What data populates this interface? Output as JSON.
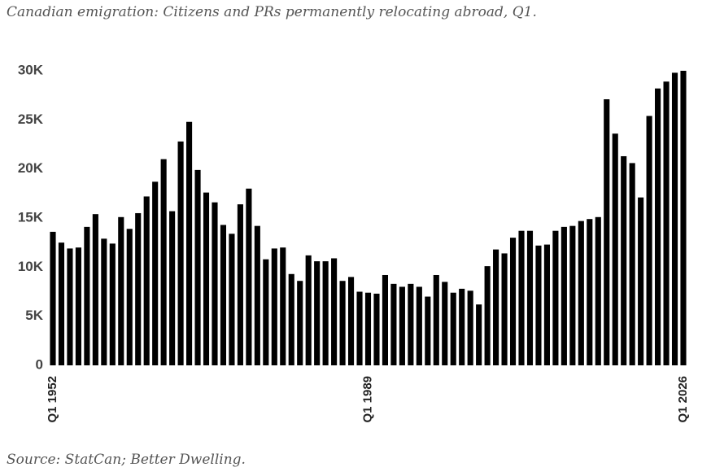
{
  "chart_data": {
    "type": "bar",
    "title": "Canadian emigration: Citizens and PRs permanently relocating abroad, Q1.",
    "source": "Source: StatCan; Better Dwelling.",
    "color": "#000000",
    "categories": [
      "Q1 1952",
      null,
      null,
      null,
      null,
      null,
      null,
      null,
      null,
      null,
      null,
      null,
      null,
      null,
      null,
      null,
      null,
      null,
      null,
      null,
      null,
      null,
      null,
      null,
      null,
      null,
      null,
      null,
      null,
      null,
      null,
      null,
      null,
      null,
      null,
      null,
      null,
      "Q1 1989",
      null,
      null,
      null,
      null,
      null,
      null,
      null,
      null,
      null,
      null,
      null,
      null,
      null,
      null,
      null,
      null,
      null,
      null,
      null,
      null,
      null,
      null,
      null,
      null,
      null,
      null,
      null,
      null,
      null,
      null,
      null,
      null,
      null,
      null,
      null,
      null,
      "Q1 2026"
    ],
    "values": [
      13600,
      12500,
      11900,
      12000,
      14100,
      15400,
      12900,
      12400,
      15100,
      13900,
      15500,
      17200,
      18700,
      21000,
      15700,
      22800,
      24800,
      19900,
      17600,
      16600,
      14300,
      13400,
      16400,
      18000,
      14200,
      10800,
      11900,
      12000,
      9300,
      8600,
      11200,
      10600,
      10600,
      10900,
      8600,
      9000,
      7500,
      7400,
      7300,
      9200,
      8300,
      8000,
      8300,
      8000,
      7000,
      9200,
      8500,
      7400,
      7800,
      7600,
      6200,
      10100,
      11800,
      11400,
      13000,
      13700,
      13700,
      12200,
      12300,
      13700,
      14100,
      14200,
      14700,
      14900,
      15100,
      27100,
      23600,
      21300,
      20600,
      17100,
      25400,
      28200,
      28900,
      29800,
      30000
    ],
    "ylim": [
      0,
      30000
    ],
    "yticks": [
      0,
      {
        "value": 5000,
        "label": "5K"
      },
      {
        "value": 10000,
        "label": "10K"
      },
      {
        "value": 15000,
        "label": "15K"
      },
      {
        "value": 20000,
        "label": "20K"
      },
      {
        "value": 25000,
        "label": "25K"
      },
      {
        "value": 30000,
        "label": "30K"
      }
    ],
    "grid": false
  }
}
